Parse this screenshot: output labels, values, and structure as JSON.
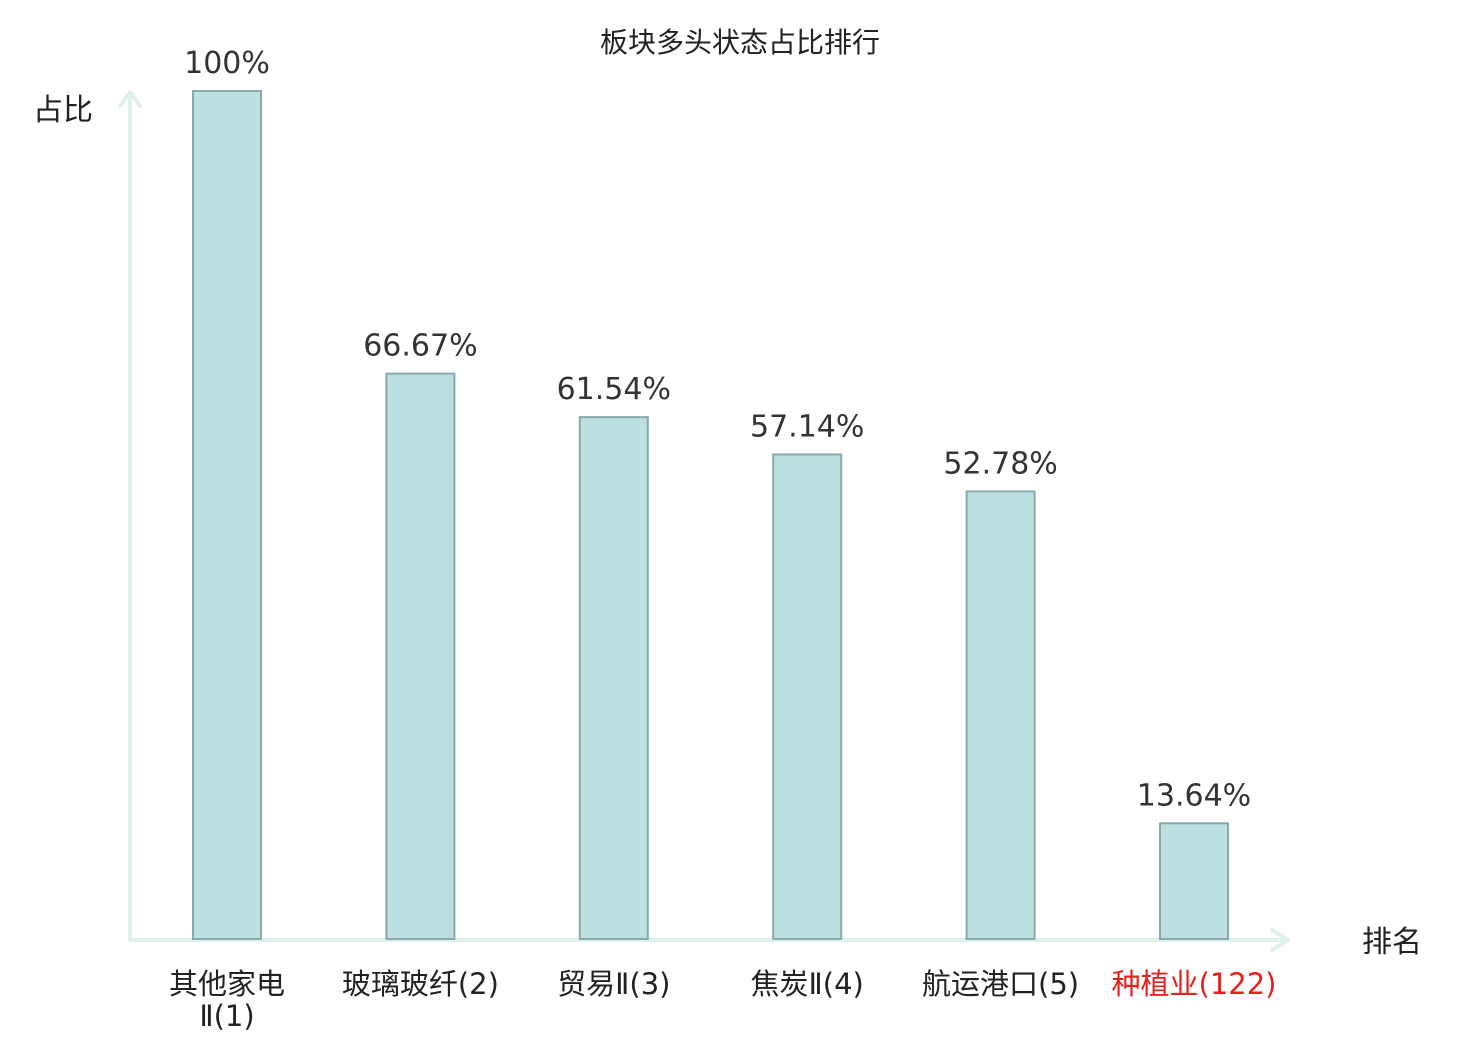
{
  "chart_data": {
    "type": "bar",
    "title": "板块多头状态占比排行",
    "ylabel": "占比",
    "xlabel": "排名",
    "ylim": [
      0,
      100
    ],
    "grid": false,
    "categories": [
      [
        "其他家电",
        "Ⅱ(1)"
      ],
      [
        "玻璃玻纤(2)"
      ],
      [
        "贸易Ⅱ(3)"
      ],
      [
        "焦炭Ⅱ(4)"
      ],
      [
        "航运港口(5)"
      ],
      [
        "种植业(122)"
      ]
    ],
    "values": [
      100,
      66.67,
      61.54,
      57.14,
      52.78,
      13.64
    ],
    "value_labels": [
      "100%",
      "66.67%",
      "61.54%",
      "57.14%",
      "52.78%",
      "13.64%"
    ],
    "highlight_index": 5,
    "colors": {
      "bar_fill": "#bde0e2",
      "bar_stroke": "#8aa8aa",
      "axis": "#dff1ef",
      "highlight_text": "#e8201c"
    }
  }
}
